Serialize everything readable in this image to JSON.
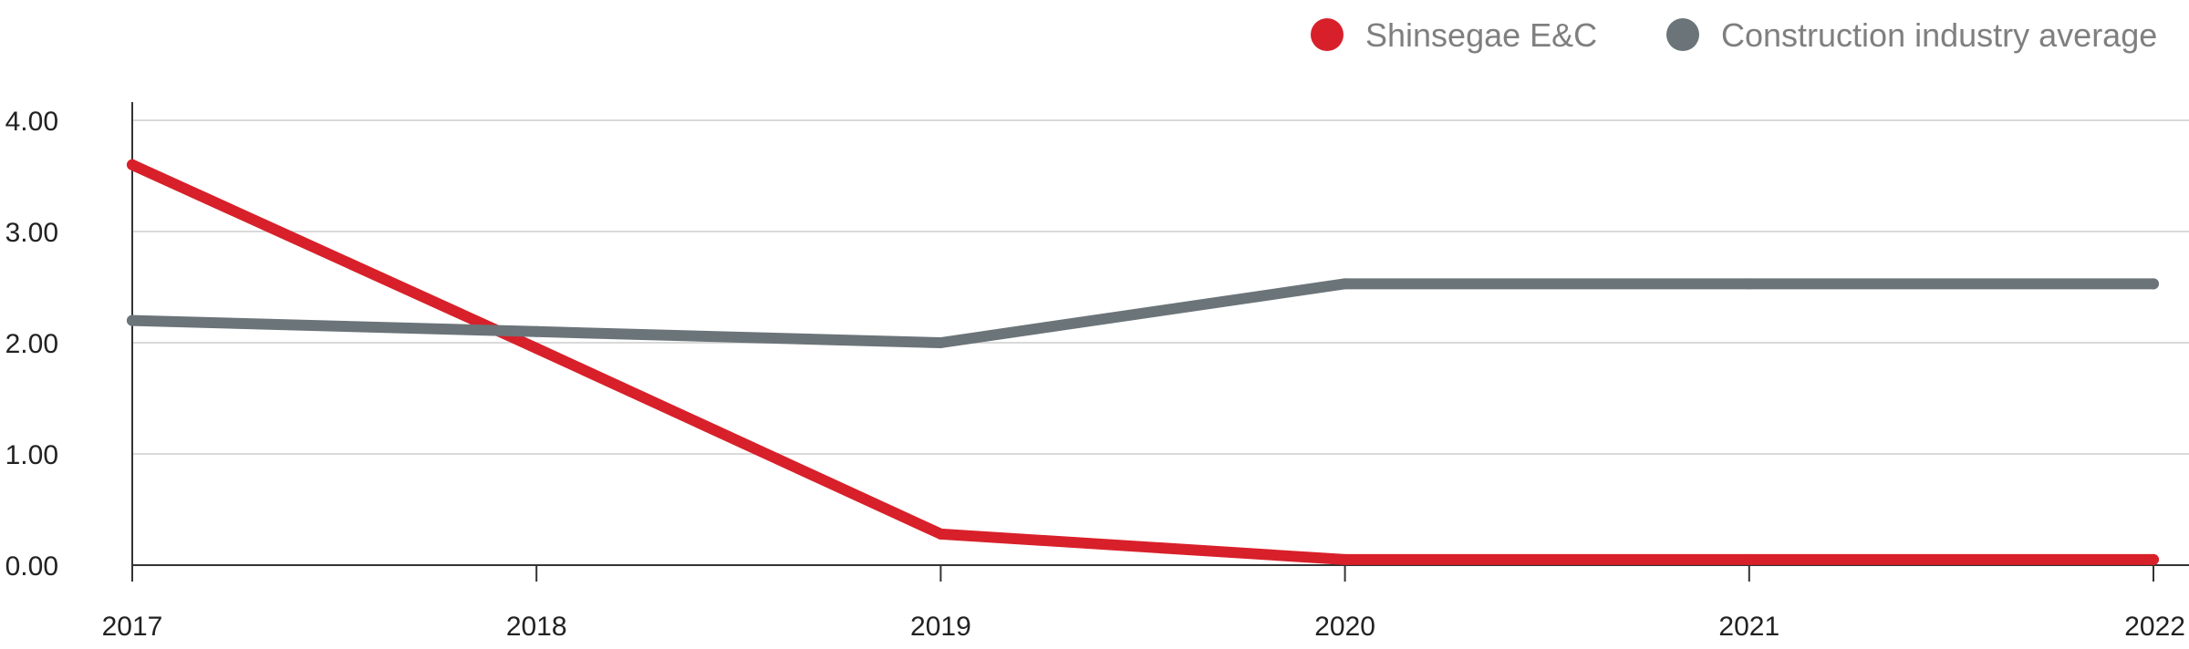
{
  "chart_data": {
    "type": "line",
    "title": "",
    "xlabel": "",
    "ylabel": "",
    "categories": [
      "2017",
      "2018",
      "2019",
      "2020",
      "2021",
      "2022"
    ],
    "ylim": [
      0,
      4
    ],
    "yticks": [
      0,
      1,
      2,
      3,
      4
    ],
    "ytick_labels": [
      "0.00",
      "1.00",
      "2.00",
      "3.00",
      "4.00"
    ],
    "grid": true,
    "legend_position": "top-right",
    "series": [
      {
        "name": "Shinsegae E&C",
        "color": "#d8202a",
        "values": [
          3.6,
          1.95,
          0.28,
          0.05,
          0.05,
          0.05
        ]
      },
      {
        "name": "Construction industry average",
        "color": "#6b7479",
        "values": [
          2.2,
          2.1,
          2.0,
          2.53,
          2.53,
          2.53
        ]
      }
    ]
  }
}
